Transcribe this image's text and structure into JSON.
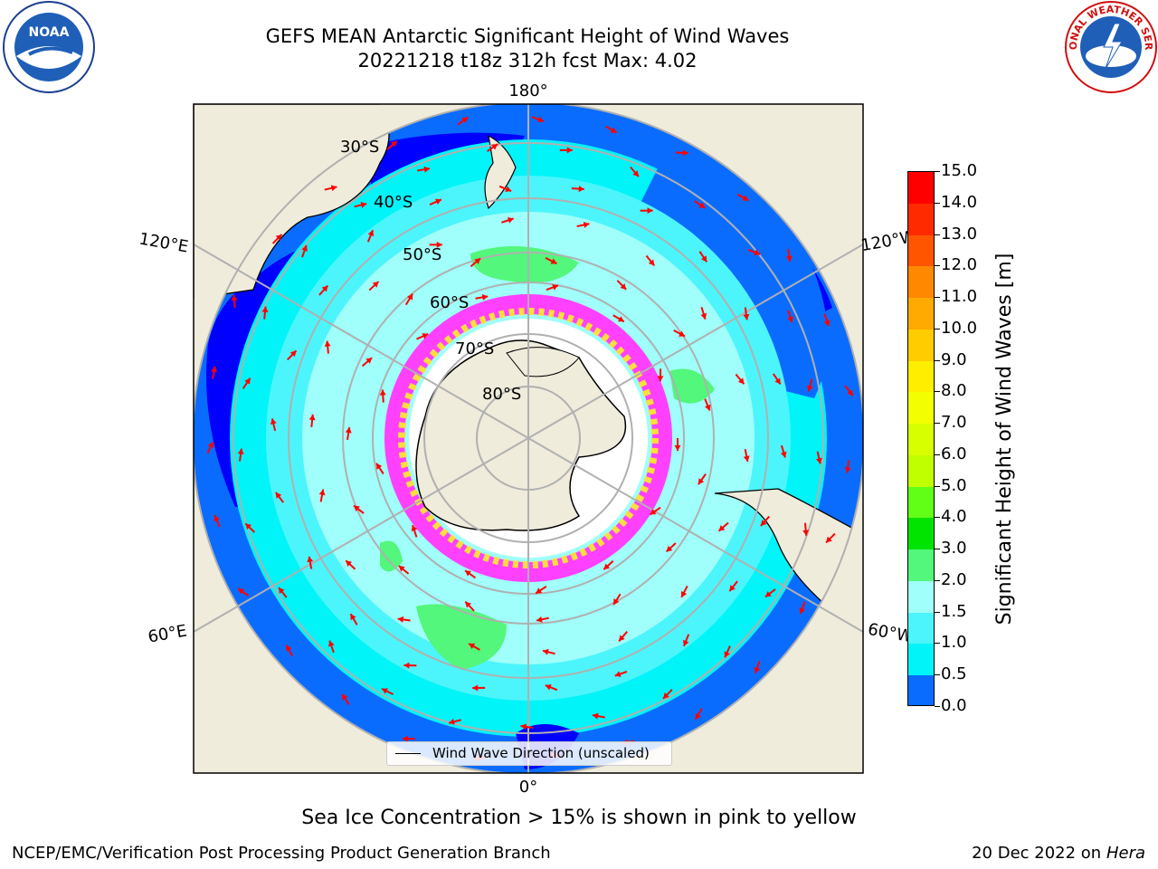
{
  "title": {
    "line1": "GEFS MEAN Antarctic Significant Height of Wind Waves",
    "line2": "20221218 t18z 312h fcst   Max: 4.02"
  },
  "logos": {
    "left": "NOAA",
    "right_text": "NATIONAL WEATHER SERVICE"
  },
  "map": {
    "projection": "south-polar-stereographic",
    "longitude_labels": {
      "top": "180°",
      "bottom": "0°",
      "left_upper": "120°E",
      "left_lower": "60°E",
      "right_upper": "120°W",
      "right_lower": "60°W"
    },
    "latitude_labels": [
      "30°S",
      "40°S",
      "50°S",
      "60°S",
      "70°S",
      "80°S"
    ],
    "legend": "Wind Wave Direction (unscaled)",
    "colors": {
      "land": "#efecdc",
      "ocean_low": "#0000ff",
      "ocean_mid": "#0a6cff",
      "ocean_cyan": "#00f4f8",
      "ocean_light": "#8cf6f6",
      "ocean_pale": "#b4f8f0",
      "green": "#52f77b",
      "arrows": "#ff0000",
      "ice_pink": "#ff40ff",
      "ice_yellow": "#ffdd40"
    }
  },
  "colorbar": {
    "label": "Significant Height of Wind Waves [m]",
    "ticks": [
      "15.0",
      "14.0",
      "13.0",
      "12.0",
      "11.0",
      "10.0",
      "9.0",
      "8.0",
      "7.0",
      "6.0",
      "5.0",
      "4.0",
      "3.0",
      "2.0",
      "1.5",
      "1.0",
      "0.5",
      "0.0"
    ],
    "colors": [
      "#ff0000",
      "#ff2a00",
      "#ff5500",
      "#ff8800",
      "#ffaa00",
      "#ffcc00",
      "#ffee00",
      "#f3ff00",
      "#d8ff00",
      "#c0ff00",
      "#62ff16",
      "#00e400",
      "#52f77b",
      "#a0fffa",
      "#4cf5fb",
      "#00f4f8",
      "#0a6cff",
      "#0000ff"
    ]
  },
  "footer": {
    "note": "Sea Ice Concentration > 15% is shown in pink to yellow",
    "left": "NCEP/EMC/Verification Post Processing Product Generation Branch",
    "right_date": "20 Dec 2022 on",
    "right_host": "Hera"
  }
}
